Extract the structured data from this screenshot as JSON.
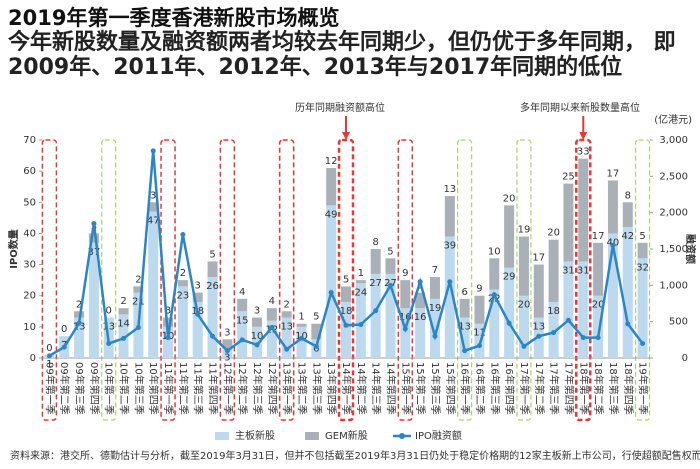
{
  "chart_data": {
    "type": "bar",
    "title": "2019年第一季度香港新股市场概览",
    "subtitle": "今年新股数量及融资额两者均较去年同期少，但仍优于多年同期， 即2009年、2011年、2012年、2013年与2017年同期的低位",
    "y_label": "IPO数量",
    "y2_label": "融资额",
    "y2_unit": "(亿港元)",
    "annotations": [
      "历年同期融资额高位",
      "多年同期以来新股数量高位"
    ],
    "source": "资料来源：港交所、德勤估计与分析，截至2019年3月31日，但并不包括截至2019年3月31日仍处于稳定价格期的12家主板新上市公司，行使超额配售权而可能会带来的额外融资金额。",
    "categories": [
      "09年第一季",
      "09年第二季",
      "09年第三季",
      "09年第四季",
      "10年第一季",
      "10年第二季",
      "10年第三季",
      "10年第四季",
      "11年第一季",
      "11年第二季",
      "11年第三季",
      "11年第四季",
      "12年第一季",
      "12年第二季",
      "12年第三季",
      "12年第四季",
      "13年第一季",
      "13年第二季",
      "13年第三季",
      "13年第四季",
      "14年第一季",
      "14年第二季",
      "14年第三季",
      "14年第四季",
      "15年第一季",
      "15年第二季",
      "15年第三季",
      "15年第四季",
      "16年第一季",
      "16年第二季",
      "16年第三季",
      "16年第四季",
      "17年第一季",
      "17年第二季",
      "17年第三季",
      "17年第四季",
      "18年第一季",
      "18年第二季",
      "18年第三季",
      "18年第四季",
      "19年第一季"
    ],
    "series": [
      {
        "name": "主板新股",
        "color": "#bcd9ee",
        "values": [
          1,
          7,
          13,
          37,
          13,
          14,
          21,
          47,
          10,
          23,
          18,
          26,
          3,
          15,
          10,
          12,
          13,
          10,
          6,
          49,
          18,
          24,
          27,
          27,
          16,
          16,
          19,
          39,
          13,
          11,
          22,
          29,
          20,
          13,
          18,
          31,
          31,
          20,
          40,
          42,
          32
        ]
      },
      {
        "name": "GEM新股",
        "color": "#aab0b8",
        "values": [
          0,
          0,
          2,
          3,
          0,
          2,
          2,
          3,
          3,
          2,
          3,
          5,
          3,
          4,
          3,
          4,
          2,
          1,
          5,
          12,
          5,
          1,
          8,
          5,
          9,
          5,
          7,
          13,
          6,
          9,
          10,
          20,
          19,
          17,
          20,
          25,
          33,
          17,
          17,
          8,
          5
        ]
      },
      {
        "name": "IPO融资额",
        "color": "#2b86c5",
        "axis": "y2",
        "values": [
          30,
          150,
          480,
          1850,
          200,
          270,
          420,
          2850,
          280,
          1700,
          600,
          300,
          100,
          250,
          180,
          420,
          120,
          270,
          160,
          900,
          450,
          460,
          650,
          1000,
          400,
          1050,
          300,
          1050,
          100,
          170,
          870,
          480,
          160,
          300,
          350,
          520,
          280,
          280,
          1550,
          470,
          200
        ]
      }
    ],
    "ylim": [
      0,
      70
    ],
    "yticks": [
      0,
      10,
      20,
      30,
      40,
      50,
      60,
      70
    ],
    "y2lim": [
      0,
      3000
    ],
    "y2ticks": [
      0,
      500,
      {
        "value": 1000,
        "label": "1,000"
      },
      {
        "value": 1500,
        "label": "1,500"
      },
      {
        "value": 2000,
        "label": "2,000"
      },
      {
        "value": 2500,
        "label": "2,500"
      },
      {
        "value": 3000,
        "label": "3,000"
      }
    ]
  }
}
